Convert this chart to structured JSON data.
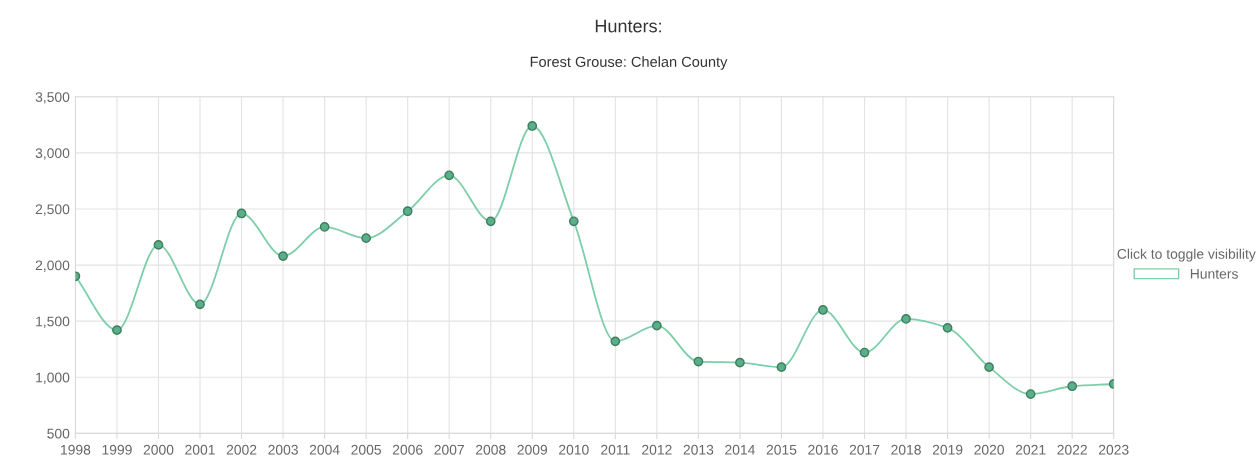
{
  "chart_data": {
    "type": "line",
    "title": "Hunters:",
    "subtitle": "Forest Grouse: Chelan County",
    "categories": [
      "1998",
      "1999",
      "2000",
      "2001",
      "2002",
      "2003",
      "2004",
      "2005",
      "2006",
      "2007",
      "2008",
      "2009",
      "2010",
      "2011",
      "2012",
      "2013",
      "2014",
      "2015",
      "2016",
      "2017",
      "2018",
      "2019",
      "2020",
      "2021",
      "2022",
      "2023"
    ],
    "series": [
      {
        "name": "Hunters",
        "color": "#7dcfa9",
        "values": [
          1900,
          1420,
          2180,
          1650,
          2460,
          2080,
          2340,
          2240,
          2480,
          2800,
          2390,
          3240,
          2390,
          1320,
          1460,
          1140,
          1130,
          1090,
          1600,
          1220,
          1520,
          1440,
          1090,
          850,
          920,
          940
        ]
      }
    ],
    "ylim": [
      500,
      3500
    ],
    "yticks": [
      {
        "value": 500,
        "label": "500"
      },
      {
        "value": 1000,
        "label": "1,000"
      },
      {
        "value": 1500,
        "label": "1,500"
      },
      {
        "value": 2000,
        "label": "2,000"
      },
      {
        "value": 2500,
        "label": "2,500"
      },
      {
        "value": 3000,
        "label": "3,000"
      },
      {
        "value": 3500,
        "label": "3,500"
      }
    ],
    "grid": true,
    "legend": "right",
    "legend_title": "Click to toggle visibility",
    "marker": "circle",
    "line_style": "solid"
  }
}
